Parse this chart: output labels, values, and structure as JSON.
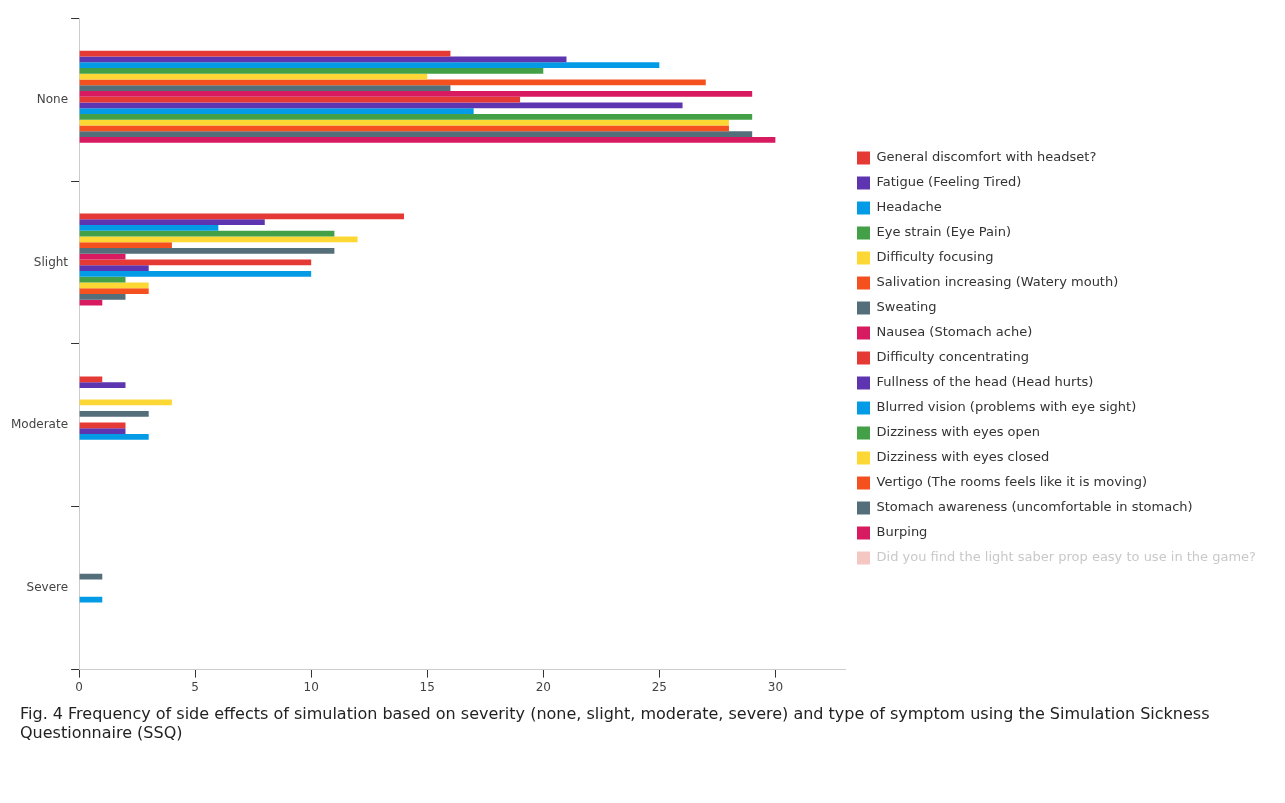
{
  "chart_data": {
    "type": "bar",
    "orientation": "horizontal",
    "categories": [
      "None",
      "Slight",
      "Moderate",
      "Severe"
    ],
    "xlim": [
      0,
      33
    ],
    "xticks": [
      0,
      5,
      10,
      15,
      20,
      25,
      30
    ],
    "grid": false,
    "legend": "right",
    "series": [
      {
        "name": "General discomfort with headset?",
        "color": "#e53935",
        "values": [
          16,
          14,
          1,
          null
        ]
      },
      {
        "name": "Fatigue (Feeling Tired)",
        "color": "#5e35b1",
        "values": [
          21,
          8,
          2,
          null
        ]
      },
      {
        "name": "Headache",
        "color": "#039be5",
        "values": [
          25,
          6,
          null,
          null
        ]
      },
      {
        "name": "Eye strain (Eye Pain)",
        "color": "#43a047",
        "values": [
          20,
          11,
          null,
          null
        ]
      },
      {
        "name": "Difficulty focusing",
        "color": "#fdd835",
        "values": [
          15,
          12,
          4,
          null
        ]
      },
      {
        "name": "Salivation increasing (Watery mouth)",
        "color": "#f4511e",
        "values": [
          27,
          4,
          null,
          null
        ]
      },
      {
        "name": "Sweating",
        "color": "#546e7a",
        "values": [
          16,
          11,
          3,
          1
        ]
      },
      {
        "name": "Nausea (Stomach ache)",
        "color": "#d81b60",
        "values": [
          29,
          2,
          null,
          null
        ]
      },
      {
        "name": "Difficulty concentrating",
        "color": "#e53935",
        "values": [
          19,
          10,
          2,
          null
        ]
      },
      {
        "name": "Fullness of the head (Head hurts)",
        "color": "#5e35b1",
        "values": [
          26,
          3,
          2,
          null
        ]
      },
      {
        "name": "Blurred vision (problems with eye sight)",
        "color": "#039be5",
        "values": [
          17,
          10,
          3,
          1
        ]
      },
      {
        "name": "Dizziness with eyes open",
        "color": "#43a047",
        "values": [
          29,
          2,
          null,
          null
        ]
      },
      {
        "name": "Dizziness with eyes closed",
        "color": "#fdd835",
        "values": [
          28,
          3,
          null,
          null
        ]
      },
      {
        "name": "Vertigo (The rooms feels like it is moving)",
        "color": "#f4511e",
        "values": [
          28,
          3,
          null,
          null
        ]
      },
      {
        "name": "Stomach awareness (uncomfortable in stomach)",
        "color": "#546e7a",
        "values": [
          29,
          2,
          null,
          null
        ]
      },
      {
        "name": "Burping",
        "color": "#d81b60",
        "values": [
          30,
          1,
          null,
          null
        ]
      },
      {
        "name": "Did you find the light saber prop easy to use in the game?",
        "color": "#f4c7c3",
        "values": [
          null,
          null,
          null,
          null
        ]
      }
    ],
    "annotations": [
      "Fig. 4  Frequency of side effects of simulation based on severity (none, slight, moderate, severe) and type of symptom using the Simulation Sickness Questionnaire (SSQ)"
    ]
  }
}
